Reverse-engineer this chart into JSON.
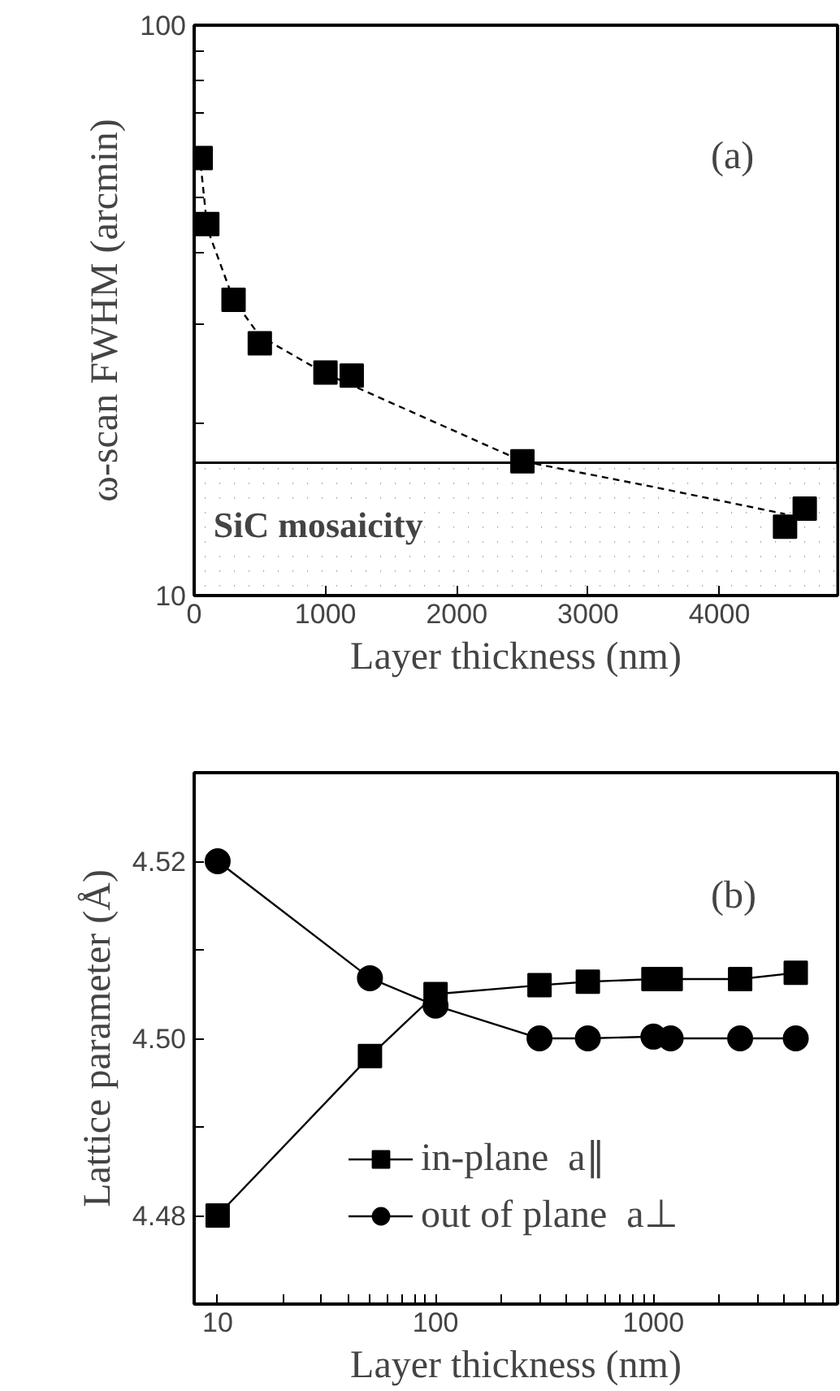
{
  "chart_data": [
    {
      "type": "scatter",
      "xlabel": "Layer thickness (nm)",
      "ylabel": "ω-scan FWHM (arcmin)",
      "log": "y",
      "grid": false,
      "legend": false,
      "xlim": [
        0,
        4900
      ],
      "ylim": [
        10,
        100
      ],
      "xticks": [
        0,
        1000,
        2000,
        3000,
        4000
      ],
      "yticks": [
        10,
        {
          "value": 20,
          "label": null
        },
        {
          "value": 30,
          "label": null
        },
        {
          "value": 40,
          "label": null
        },
        {
          "value": 50,
          "label": null
        },
        {
          "value": 60,
          "label": null
        },
        {
          "value": 70,
          "label": null
        },
        {
          "value": 80,
          "label": null
        },
        {
          "value": 90,
          "label": null
        },
        100
      ],
      "annotations": [
        "(a)"
      ],
      "bands": [
        {
          "axis": "y",
          "from": 10,
          "to": 17.1,
          "label": "SiC mosaicity",
          "color": "#a0a0a0"
        }
      ],
      "series": [
        {
          "type": "scatter",
          "marker": "square",
          "color": "#000000",
          "x": [
            50,
            100,
            300,
            500,
            1000,
            1200,
            2500,
            4500,
            4650
          ],
          "values": [
            58.5,
            44.8,
            33,
            27.7,
            24.6,
            24.3,
            17.2,
            13.2,
            14.2
          ]
        },
        {
          "type": "line",
          "marker": "none",
          "line_style": "dashed",
          "color": "#000000",
          "x": [
            50,
            100,
            300,
            500,
            1000,
            1400,
            2500,
            3500,
            4500
          ],
          "values": [
            57,
            44,
            33,
            28.5,
            24.5,
            22.3,
            17.2,
            15.5,
            13.9
          ]
        }
      ]
    },
    {
      "type": "line",
      "xlabel": "Layer thickness (nm)",
      "ylabel": "Lattice parameter (Å)",
      "log": "x",
      "grid": false,
      "legend": "bottom right",
      "xlim": [
        7.8,
        7000
      ],
      "ylim": [
        4.47,
        4.53
      ],
      "xticks": [
        10,
        {
          "value": 20,
          "label": null
        },
        {
          "value": 30,
          "label": null
        },
        {
          "value": 40,
          "label": null
        },
        {
          "value": 50,
          "label": null
        },
        {
          "value": 60,
          "label": null
        },
        {
          "value": 70,
          "label": null
        },
        {
          "value": 80,
          "label": null
        },
        {
          "value": 90,
          "label": null
        },
        100,
        {
          "value": 200,
          "label": null
        },
        {
          "value": 300,
          "label": null
        },
        {
          "value": 400,
          "label": null
        },
        {
          "value": 500,
          "label": null
        },
        {
          "value": 600,
          "label": null
        },
        {
          "value": 700,
          "label": null
        },
        {
          "value": 800,
          "label": null
        },
        {
          "value": 900,
          "label": null
        },
        1000,
        {
          "value": 2000,
          "label": null
        },
        {
          "value": 3000,
          "label": null
        },
        {
          "value": 4000,
          "label": null
        },
        {
          "value": 5000,
          "label": null
        },
        {
          "value": 6000,
          "label": null
        }
      ],
      "yticks": [
        {
          "value": 4.48,
          "label": "4.48"
        },
        {
          "value": 4.49,
          "label": null
        },
        {
          "value": 4.5,
          "label": "4.50"
        },
        {
          "value": 4.51,
          "label": null
        },
        {
          "value": 4.52,
          "label": "4.52"
        }
      ],
      "annotations": [
        "(b)"
      ],
      "x": [
        10,
        50,
        100,
        300,
        500,
        1000,
        1200,
        2500,
        4500
      ],
      "series": [
        {
          "name": "in-plane  a∥",
          "marker": "square",
          "color": "#000000",
          "values": [
            4.48,
            4.498,
            4.505,
            4.506,
            4.5064,
            4.5067,
            4.5067,
            4.5067,
            4.5074
          ]
        },
        {
          "name": "out of plane  a⊥",
          "marker": "circle",
          "color": "#000000",
          "values": [
            4.52,
            4.5068,
            4.5037,
            4.5,
            4.5,
            4.5002,
            4.5,
            4.5,
            4.5
          ]
        }
      ]
    }
  ]
}
